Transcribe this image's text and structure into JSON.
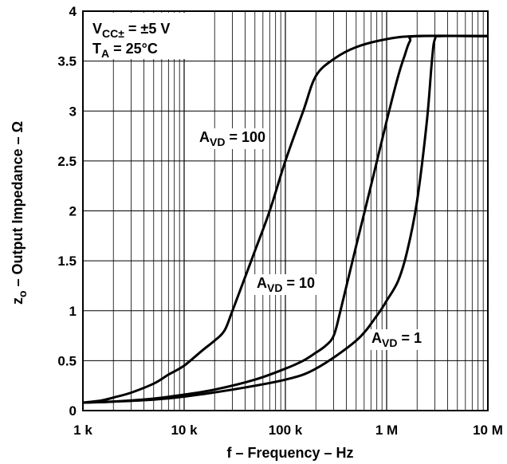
{
  "chart_data": {
    "type": "line",
    "x_scale": "log",
    "xlabel": "f – Frequency – Hz",
    "ylabel_prefix": "z",
    "ylabel_subscript": "o",
    "ylabel_rest": " – Output Impedance – Ω",
    "xlim": [
      1000,
      10000000
    ],
    "ylim": [
      0,
      4
    ],
    "grid": true,
    "x_ticks": [
      {
        "value": 1000,
        "label": "1 k"
      },
      {
        "value": 10000,
        "label": "10 k"
      },
      {
        "value": 100000,
        "label": "100 k"
      },
      {
        "value": 1000000,
        "label": "1 M"
      },
      {
        "value": 10000000,
        "label": "10 M"
      }
    ],
    "y_ticks": [
      {
        "value": 0,
        "label": "0"
      },
      {
        "value": 0.5,
        "label": "0.5"
      },
      {
        "value": 1,
        "label": "1"
      },
      {
        "value": 1.5,
        "label": "1.5"
      },
      {
        "value": 2,
        "label": "2"
      },
      {
        "value": 2.5,
        "label": "2.5"
      },
      {
        "value": 3,
        "label": "3"
      },
      {
        "value": 3.5,
        "label": "3.5"
      },
      {
        "value": 4,
        "label": "4"
      }
    ],
    "conditions": [
      {
        "main": "V",
        "sub": "CC±",
        "rest": " = ±5 V"
      },
      {
        "main": "T",
        "sub": "A",
        "rest": " = 25°C"
      }
    ],
    "series": [
      {
        "label_main": "A",
        "label_sub": "VD",
        "label_rest": " = 100",
        "points": [
          [
            1000,
            0.08
          ],
          [
            1500,
            0.1
          ],
          [
            2000,
            0.13
          ],
          [
            3000,
            0.18
          ],
          [
            5000,
            0.27
          ],
          [
            7000,
            0.36
          ],
          [
            10000,
            0.45
          ],
          [
            15000,
            0.6
          ],
          [
            20000,
            0.7
          ],
          [
            25000,
            0.8
          ],
          [
            30000,
            1.0
          ],
          [
            50000,
            1.6
          ],
          [
            70000,
            2.0
          ],
          [
            100000,
            2.5
          ],
          [
            150000,
            3.0
          ],
          [
            200000,
            3.35
          ],
          [
            300000,
            3.52
          ],
          [
            500000,
            3.64
          ],
          [
            1000000,
            3.72
          ],
          [
            2000000,
            3.75
          ],
          [
            10000000,
            3.75
          ]
        ]
      },
      {
        "label_main": "A",
        "label_sub": "VD",
        "label_rest": " = 10",
        "points": [
          [
            1000,
            0.08
          ],
          [
            2000,
            0.09
          ],
          [
            5000,
            0.12
          ],
          [
            10000,
            0.16
          ],
          [
            20000,
            0.21
          ],
          [
            50000,
            0.31
          ],
          [
            100000,
            0.42
          ],
          [
            150000,
            0.5
          ],
          [
            200000,
            0.58
          ],
          [
            250000,
            0.65
          ],
          [
            300000,
            0.75
          ],
          [
            350000,
            1.0
          ],
          [
            500000,
            1.65
          ],
          [
            700000,
            2.25
          ],
          [
            1000000,
            2.9
          ],
          [
            1300000,
            3.35
          ],
          [
            1500000,
            3.55
          ],
          [
            1700000,
            3.7
          ],
          [
            2000000,
            3.75
          ],
          [
            10000000,
            3.75
          ]
        ]
      },
      {
        "label_main": "A",
        "label_sub": "VD",
        "label_rest": " = 1",
        "points": [
          [
            1000,
            0.08
          ],
          [
            2000,
            0.09
          ],
          [
            5000,
            0.11
          ],
          [
            10000,
            0.14
          ],
          [
            30000,
            0.21
          ],
          [
            100000,
            0.31
          ],
          [
            200000,
            0.42
          ],
          [
            500000,
            0.7
          ],
          [
            800000,
            0.95
          ],
          [
            1000000,
            1.1
          ],
          [
            1300000,
            1.3
          ],
          [
            1600000,
            1.6
          ],
          [
            2000000,
            2.1
          ],
          [
            2500000,
            2.9
          ],
          [
            2800000,
            3.5
          ],
          [
            3000000,
            3.72
          ],
          [
            3500000,
            3.75
          ],
          [
            10000000,
            3.75
          ]
        ]
      }
    ]
  }
}
